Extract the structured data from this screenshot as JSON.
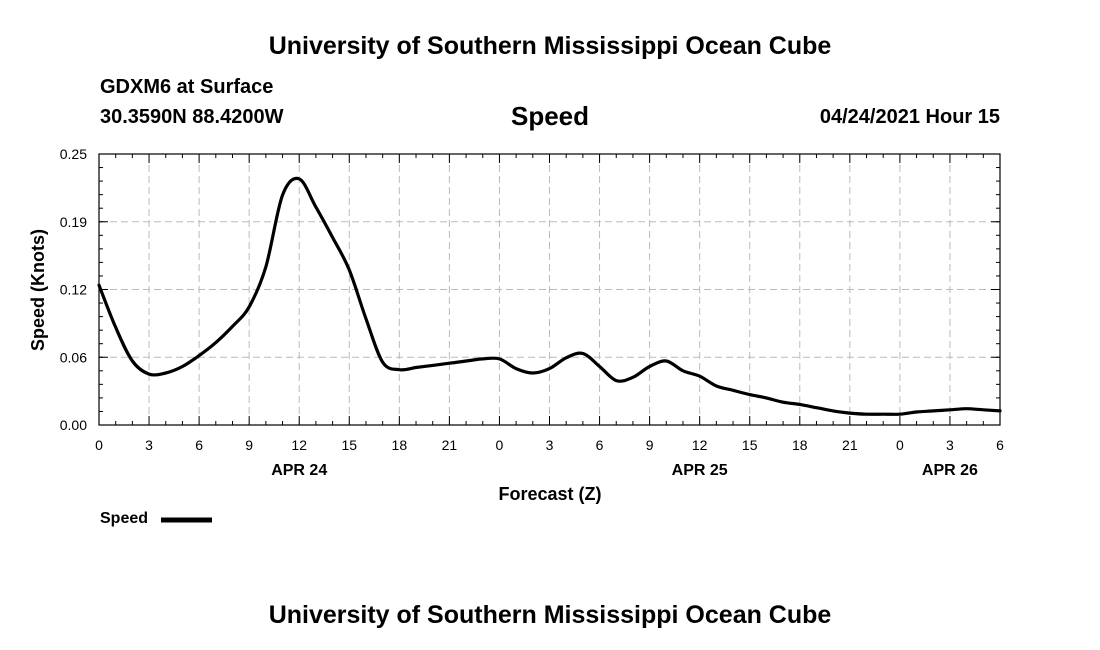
{
  "header": {
    "title_top": "University of Southern Mississippi Ocean Cube",
    "station": "GDXM6 at Surface",
    "coords": "30.3590N  88.4200W",
    "variable": "Speed",
    "datetime": "04/24/2021 Hour 15"
  },
  "footer": {
    "title_bottom": "University of Southern Mississippi Ocean Cube"
  },
  "legend": {
    "label": "Speed"
  },
  "colors": {
    "line": "#000000",
    "grid": "#bbbbbb"
  },
  "chart_data": {
    "type": "line",
    "title": "Speed",
    "xlabel": "Forecast (Z)",
    "ylabel": "Speed (Knots)",
    "xlim": [
      0,
      54
    ],
    "ylim": [
      0,
      0.25
    ],
    "y_ticks": [
      "0.00",
      "0.06",
      "0.12",
      "0.19",
      "0.25"
    ],
    "y_tick_values": [
      0,
      0.0625,
      0.125,
      0.1875,
      0.25
    ],
    "x_ticks": [
      0,
      3,
      6,
      9,
      12,
      15,
      18,
      21,
      24,
      27,
      30,
      33,
      36,
      39,
      42,
      45,
      48,
      51,
      54
    ],
    "x_tick_labels": [
      "0",
      "3",
      "6",
      "9",
      "12",
      "15",
      "18",
      "21",
      "0",
      "3",
      "6",
      "9",
      "12",
      "15",
      "18",
      "21",
      "0",
      "3",
      "6"
    ],
    "date_labels": [
      {
        "label": "APR 24",
        "x": 12
      },
      {
        "label": "APR 25",
        "x": 36
      },
      {
        "label": "APR 26",
        "x": 51
      }
    ],
    "grid": true,
    "legend_position": "bottom-left",
    "series": [
      {
        "name": "Speed",
        "x": [
          0,
          1,
          2,
          3,
          4,
          5,
          6,
          7,
          8,
          9,
          10,
          11,
          12,
          13,
          14,
          15,
          16,
          17,
          18,
          19,
          20,
          21,
          22,
          23,
          24,
          25,
          26,
          27,
          28,
          29,
          30,
          31,
          32,
          33,
          34,
          35,
          36,
          37,
          38,
          39,
          40,
          41,
          42,
          43,
          44,
          45,
          46,
          47,
          48,
          49,
          50,
          51,
          52,
          53,
          54
        ],
        "values": [
          0.129,
          0.09,
          0.059,
          0.047,
          0.048,
          0.054,
          0.064,
          0.076,
          0.091,
          0.109,
          0.146,
          0.212,
          0.227,
          0.201,
          0.173,
          0.143,
          0.098,
          0.058,
          0.051,
          0.053,
          0.055,
          0.057,
          0.059,
          0.061,
          0.061,
          0.052,
          0.048,
          0.052,
          0.062,
          0.066,
          0.054,
          0.041,
          0.044,
          0.054,
          0.059,
          0.05,
          0.045,
          0.036,
          0.032,
          0.028,
          0.025,
          0.021,
          0.019,
          0.016,
          0.013,
          0.011,
          0.01,
          0.01,
          0.01,
          0.012,
          0.013,
          0.014,
          0.015,
          0.014,
          0.013
        ]
      }
    ]
  }
}
